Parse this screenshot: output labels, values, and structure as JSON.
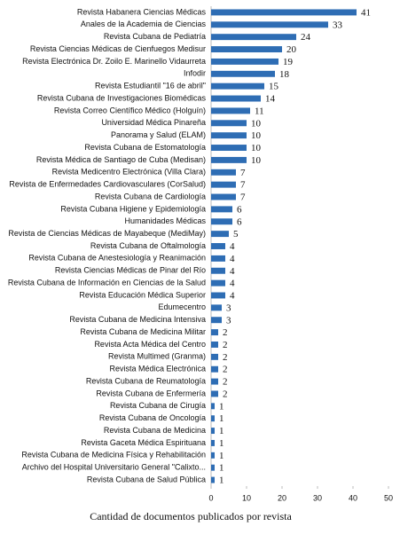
{
  "chart_data": {
    "type": "barh",
    "xlabel": "Cantidad de documentos publicados por revista",
    "categories": [
      "Revista Habanera Ciencias Médicas",
      "Anales de la Academia de Ciencias",
      "Revista Cubana de Pediatría",
      "Revista Ciencias Médicas de Cienfuegos Medisur",
      "Revista Electrónica Dr. Zoilo E. Marinello Vidaurreta",
      "Infodir",
      "Revista Estudiantil \"16 de abril\"",
      "Revista Cubana de Investigaciones Biomédicas",
      "Revista Correo Científico Médico (Holguín)",
      "Universidad Médica Pinareña",
      "Panorama y Salud  (ELAM)",
      "Revista Cubana de Estomatología",
      "Revista Médica de Santiago de Cuba (Medisan)",
      "Revista Medicentro Electrónica  (Villa Clara)",
      "Revista de Enfermedades Cardiovasculares (CorSalud)",
      "Revista Cubana de Cardiología",
      "Revista Cubana Higiene y Epidemiología",
      "Humanidades Médicas",
      "Revista de Ciencias Médicas de Mayabeque (MediMay)",
      "Revista Cubana de Oftalmología",
      "Revista Cubana de Anestesiología y Reanimación",
      "Revista Ciencias Médicas de Pinar del Río",
      "Revista Cubana de Información en Ciencias de la Salud",
      "Revista Educación Médica Superior",
      "Edumecentro",
      "Revista Cubana de Medicina Intensiva",
      "Revista Cubana de Medicina Militar",
      "Revista Acta Médica del Centro",
      "Revista Multimed (Granma)",
      "Revista Médica Electrónica",
      "Revista Cubana de Reumatología",
      "Revista Cubana de Enfermería",
      "Revista Cubana de Cirugía",
      "Revista Cubana de Oncología",
      "Revista Cubana de Medicina",
      "Revista Gaceta Médica Espirituana",
      "Revista Cubana de Medicina Física y Rehabilitación",
      "Archivo del Hospital Universitario General \"Calixto...",
      "Revista Cubana de Salud Pública"
    ],
    "values": [
      41,
      33,
      24,
      20,
      19,
      18,
      15,
      14,
      11,
      10,
      10,
      10,
      10,
      7,
      7,
      7,
      6,
      6,
      5,
      4,
      4,
      4,
      4,
      4,
      3,
      3,
      2,
      2,
      2,
      2,
      2,
      2,
      1,
      1,
      1,
      1,
      1,
      1,
      1
    ],
    "color": "#2e6db4",
    "xlim": [
      0,
      50
    ],
    "xticks": [
      0,
      10,
      20,
      30,
      40,
      50
    ]
  }
}
